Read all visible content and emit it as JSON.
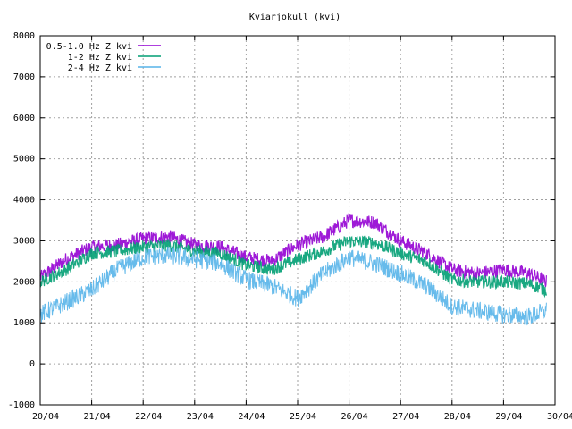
{
  "chart_data": {
    "type": "line",
    "title": "Kviarjokull (kvi)",
    "xlabel": "",
    "ylabel": "",
    "ylim": [
      -1000,
      8000
    ],
    "yticks": [
      -1000,
      0,
      1000,
      2000,
      3000,
      4000,
      5000,
      6000,
      7000,
      8000
    ],
    "xlim": [
      "20/04",
      "30/04"
    ],
    "xticks": [
      "20/04",
      "21/04",
      "22/04",
      "23/04",
      "24/04",
      "25/04",
      "26/04",
      "27/04",
      "28/04",
      "29/04",
      "30/04"
    ],
    "grid": true,
    "legend_position": "top-left",
    "x": [
      "20/04 00:00",
      "20/04 12:00",
      "21/04 00:00",
      "21/04 12:00",
      "22/04 00:00",
      "22/04 12:00",
      "23/04 00:00",
      "23/04 12:00",
      "24/04 00:00",
      "24/04 12:00",
      "25/04 00:00",
      "25/04 12:00",
      "26/04 00:00",
      "26/04 12:00",
      "27/04 00:00",
      "27/04 12:00",
      "28/04 00:00",
      "28/04 12:00",
      "29/04 00:00",
      "29/04 12:00",
      "29/04 20:00"
    ],
    "series": [
      {
        "name": "0.5-1.0 Hz Z kvi",
        "color": "#9400d3",
        "values": [
          2100,
          2550,
          2850,
          2900,
          3050,
          3100,
          2900,
          2850,
          2600,
          2500,
          2900,
          3100,
          3500,
          3450,
          3000,
          2700,
          2300,
          2200,
          2300,
          2200,
          2000
        ]
      },
      {
        "name": "1-2 Hz Z kvi",
        "color": "#009e73",
        "values": [
          2000,
          2300,
          2700,
          2750,
          2850,
          2900,
          2750,
          2700,
          2400,
          2300,
          2550,
          2750,
          3000,
          2950,
          2700,
          2500,
          2050,
          2000,
          2000,
          1950,
          1800
        ]
      },
      {
        "name": "2-4 Hz Z kvi",
        "color": "#56b4e9",
        "values": [
          1200,
          1500,
          1800,
          2300,
          2600,
          2650,
          2550,
          2450,
          2050,
          1900,
          1600,
          2200,
          2600,
          2450,
          2200,
          1900,
          1400,
          1300,
          1200,
          1150,
          1300
        ]
      }
    ]
  }
}
